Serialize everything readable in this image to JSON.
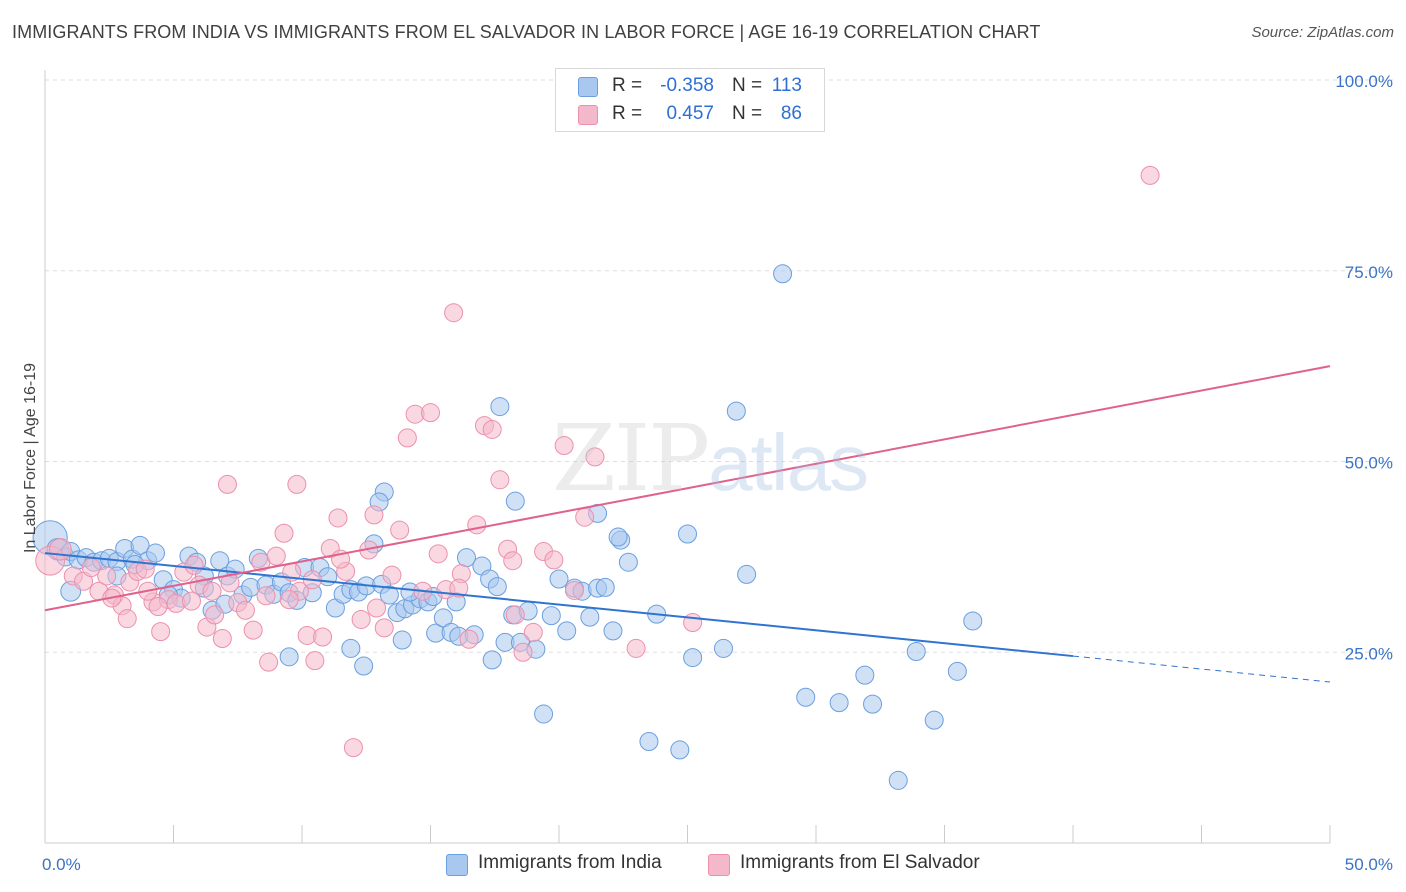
{
  "title": "IMMIGRANTS FROM INDIA VS IMMIGRANTS FROM EL SALVADOR IN LABOR FORCE | AGE 16-19 CORRELATION CHART",
  "source": "Source: ZipAtlas.com",
  "watermark": {
    "zip": "ZIP",
    "atlas": "atlas"
  },
  "legend": {
    "rows": [
      {
        "r_label": "R =",
        "r_value": "-0.358",
        "n_label": "N =",
        "n_value": "113"
      },
      {
        "r_label": "R =",
        "r_value": "0.457",
        "n_label": "N =",
        "n_value": "86"
      }
    ]
  },
  "bottom_legend": [
    {
      "label": "Immigrants from India"
    },
    {
      "label": "Immigrants from El Salvador"
    }
  ],
  "colors": {
    "india_fill": "#a9c8ef",
    "india_stroke": "#6a9fe0",
    "india_line": "#2f74d0",
    "salvador_fill": "#f4b8cb",
    "salvador_stroke": "#ec90ad",
    "salvador_line": "#e0628b",
    "tick_text": "#3a73c6",
    "grid": "#dddddd"
  },
  "chart_data": {
    "type": "scatter",
    "title": "IMMIGRANTS FROM INDIA VS IMMIGRANTS FROM EL SALVADOR IN LABOR FORCE | AGE 16-19 CORRELATION CHART",
    "xlabel": "",
    "ylabel": "In Labor Force | Age 16-19",
    "xlim": [
      0,
      50
    ],
    "ylim": [
      0,
      100
    ],
    "x_tick_labels": [
      "0.0%",
      "50.0%"
    ],
    "y_ticks": [
      25,
      50,
      75,
      100
    ],
    "y_tick_labels": [
      "25.0%",
      "50.0%",
      "75.0%",
      "100.0%"
    ],
    "grid": true,
    "legend_position": "top-center",
    "series": [
      {
        "name": "Immigrants from India",
        "R": -0.358,
        "N": 113,
        "trend": {
          "x0": 0,
          "y0": 38.0,
          "x1": 40,
          "y1": 24.5,
          "dashed_to_x": 50,
          "dashed_to_y": 21.1
        },
        "points": [
          [
            0.2,
            40.0,
            1.9
          ],
          [
            0.5,
            38.5,
            1.2
          ],
          [
            0.8,
            37.5,
            1
          ],
          [
            1.0,
            38.2,
            1
          ],
          [
            1.3,
            37.1,
            1
          ],
          [
            1.6,
            37.4,
            1
          ],
          [
            1.9,
            36.8,
            1
          ],
          [
            2.2,
            37.0,
            1
          ],
          [
            2.5,
            37.3,
            1
          ],
          [
            2.8,
            36.9,
            1
          ],
          [
            3.1,
            38.6,
            1
          ],
          [
            3.4,
            37.2,
            1
          ],
          [
            3.7,
            39.0,
            1
          ],
          [
            4.0,
            37.0,
            1
          ],
          [
            4.3,
            38.0,
            1
          ],
          [
            1.0,
            33.0,
            1.1
          ],
          [
            2.8,
            35.0,
            1
          ],
          [
            3.5,
            36.5,
            1
          ],
          [
            4.6,
            34.5,
            1
          ],
          [
            5.0,
            33.2,
            1
          ],
          [
            5.3,
            32.1,
            1
          ],
          [
            5.6,
            37.6,
            1
          ],
          [
            5.9,
            36.8,
            1
          ],
          [
            6.2,
            35.0,
            1
          ],
          [
            6.5,
            30.5,
            1
          ],
          [
            6.8,
            37.0,
            1
          ],
          [
            7.1,
            35.0,
            1
          ],
          [
            7.4,
            35.9,
            1
          ],
          [
            7.7,
            32.5,
            1
          ],
          [
            8.0,
            33.5,
            1
          ],
          [
            8.3,
            37.3,
            1
          ],
          [
            8.6,
            33.8,
            1
          ],
          [
            8.9,
            32.6,
            1
          ],
          [
            9.2,
            34.2,
            1
          ],
          [
            9.5,
            32.8,
            1
          ],
          [
            9.8,
            31.8,
            1
          ],
          [
            10.1,
            36.1,
            1
          ],
          [
            10.4,
            32.8,
            1
          ],
          [
            10.7,
            36.1,
            1
          ],
          [
            11.0,
            34.9,
            1
          ],
          [
            11.3,
            30.8,
            1
          ],
          [
            11.6,
            32.6,
            1
          ],
          [
            11.9,
            33.2,
            1
          ],
          [
            12.2,
            32.9,
            1
          ],
          [
            12.5,
            33.7,
            1
          ],
          [
            12.8,
            39.2,
            1
          ],
          [
            13.1,
            33.9,
            1
          ],
          [
            13.4,
            32.5,
            1
          ],
          [
            13.7,
            30.2,
            1
          ],
          [
            14.0,
            30.7,
            1
          ],
          [
            14.3,
            31.2,
            1
          ],
          [
            14.6,
            32.0,
            1
          ],
          [
            14.9,
            31.6,
            1
          ],
          [
            15.2,
            27.5,
            1
          ],
          [
            15.5,
            29.5,
            1
          ],
          [
            15.8,
            27.6,
            1
          ],
          [
            16.1,
            27.1,
            1
          ],
          [
            16.4,
            37.4,
            1
          ],
          [
            16.7,
            27.3,
            1
          ],
          [
            17.0,
            36.3,
            1
          ],
          [
            17.3,
            34.6,
            1
          ],
          [
            17.6,
            33.6,
            1
          ],
          [
            17.9,
            26.3,
            1
          ],
          [
            18.2,
            29.9,
            1
          ],
          [
            18.5,
            26.3,
            1
          ],
          [
            18.8,
            30.4,
            1
          ],
          [
            19.1,
            25.4,
            1
          ],
          [
            19.4,
            16.9,
            1
          ],
          [
            19.7,
            29.8,
            1
          ],
          [
            20.0,
            34.6,
            1
          ],
          [
            20.3,
            27.8,
            1
          ],
          [
            20.6,
            33.4,
            1
          ],
          [
            20.9,
            33.0,
            1
          ],
          [
            21.2,
            29.6,
            1
          ],
          [
            21.5,
            33.4,
            1
          ],
          [
            21.8,
            33.5,
            1
          ],
          [
            22.1,
            27.8,
            1
          ],
          [
            22.4,
            39.7,
            1
          ],
          [
            22.7,
            36.8,
            1
          ],
          [
            23.5,
            13.3,
            1
          ],
          [
            23.8,
            30.0,
            1
          ],
          [
            24.7,
            12.2,
            1
          ],
          [
            25.2,
            24.3,
            1
          ],
          [
            26.4,
            25.5,
            1
          ],
          [
            26.9,
            56.6,
            1
          ],
          [
            27.3,
            35.2,
            1
          ],
          [
            28.7,
            74.6,
            1
          ],
          [
            29.6,
            19.1,
            1
          ],
          [
            30.9,
            18.4,
            1
          ],
          [
            31.9,
            22.0,
            1
          ],
          [
            32.2,
            18.2,
            1
          ],
          [
            33.2,
            8.2,
            1
          ],
          [
            33.9,
            25.1,
            1
          ],
          [
            34.6,
            16.1,
            1
          ],
          [
            35.5,
            22.5,
            1
          ],
          [
            36.1,
            29.1,
            1
          ],
          [
            17.7,
            57.2,
            1
          ],
          [
            18.3,
            44.8,
            1
          ],
          [
            21.5,
            43.2,
            1
          ],
          [
            25.0,
            40.5,
            1
          ],
          [
            22.3,
            40.1,
            1
          ],
          [
            13.2,
            46.0,
            1
          ],
          [
            13.0,
            44.7,
            1
          ],
          [
            6.2,
            33.4,
            1
          ],
          [
            4.8,
            32.5,
            1
          ],
          [
            12.4,
            23.2,
            1
          ],
          [
            9.5,
            24.4,
            1
          ],
          [
            11.9,
            25.5,
            1
          ],
          [
            13.9,
            26.6,
            1
          ],
          [
            17.4,
            24.0,
            1
          ],
          [
            16.0,
            31.6,
            1
          ],
          [
            15.1,
            32.3,
            1
          ],
          [
            14.2,
            32.9,
            1
          ],
          [
            7.0,
            31.3,
            1
          ]
        ]
      },
      {
        "name": "Immigrants from El Salvador",
        "R": 0.457,
        "N": 86,
        "trend": {
          "x0": 0,
          "y0": 30.5,
          "x1": 50,
          "y1": 62.5
        },
        "points": [
          [
            0.2,
            37.0,
            1.6
          ],
          [
            0.6,
            38.5,
            1.2
          ],
          [
            1.1,
            35.0,
            1
          ],
          [
            1.5,
            34.3,
            1
          ],
          [
            1.8,
            36.1,
            1
          ],
          [
            2.1,
            33.0,
            1
          ],
          [
            2.4,
            35.0,
            1
          ],
          [
            2.7,
            32.5,
            1
          ],
          [
            3.0,
            31.1,
            1
          ],
          [
            3.3,
            34.2,
            1
          ],
          [
            3.6,
            35.6,
            1
          ],
          [
            3.9,
            35.9,
            1
          ],
          [
            4.2,
            31.6,
            1
          ],
          [
            4.5,
            27.7,
            1
          ],
          [
            4.8,
            31.9,
            1
          ],
          [
            5.1,
            31.4,
            1
          ],
          [
            5.4,
            35.5,
            1
          ],
          [
            5.7,
            31.7,
            1
          ],
          [
            6.0,
            33.8,
            1
          ],
          [
            6.3,
            28.3,
            1
          ],
          [
            6.6,
            29.9,
            1
          ],
          [
            6.9,
            26.8,
            1
          ],
          [
            7.2,
            34.1,
            1
          ],
          [
            7.5,
            31.5,
            1
          ],
          [
            7.8,
            30.5,
            1
          ],
          [
            8.1,
            27.9,
            1
          ],
          [
            8.4,
            36.8,
            1
          ],
          [
            8.7,
            23.7,
            1
          ],
          [
            9.0,
            37.6,
            1
          ],
          [
            9.3,
            40.6,
            1
          ],
          [
            9.6,
            35.5,
            1
          ],
          [
            9.9,
            33.0,
            1
          ],
          [
            10.2,
            27.2,
            1
          ],
          [
            10.5,
            23.9,
            1
          ],
          [
            10.8,
            27.0,
            1
          ],
          [
            11.1,
            38.6,
            1
          ],
          [
            11.4,
            42.6,
            1
          ],
          [
            11.7,
            35.6,
            1
          ],
          [
            12.0,
            12.5,
            1
          ],
          [
            12.3,
            29.3,
            1
          ],
          [
            12.6,
            38.4,
            1
          ],
          [
            12.9,
            30.8,
            1
          ],
          [
            13.2,
            28.2,
            1
          ],
          [
            13.5,
            35.1,
            1
          ],
          [
            13.8,
            41.0,
            1
          ],
          [
            14.1,
            53.1,
            1
          ],
          [
            14.4,
            56.2,
            1
          ],
          [
            14.7,
            33.0,
            1
          ],
          [
            15.0,
            56.4,
            1
          ],
          [
            15.3,
            37.9,
            1
          ],
          [
            15.6,
            33.2,
            1
          ],
          [
            15.9,
            69.5,
            1
          ],
          [
            16.2,
            35.3,
            1
          ],
          [
            16.5,
            26.7,
            1
          ],
          [
            16.8,
            41.7,
            1
          ],
          [
            17.1,
            54.7,
            1
          ],
          [
            17.4,
            54.2,
            1
          ],
          [
            17.7,
            47.6,
            1
          ],
          [
            18.0,
            38.5,
            1
          ],
          [
            18.3,
            29.9,
            1
          ],
          [
            18.6,
            25.0,
            1
          ],
          [
            19.0,
            27.6,
            1
          ],
          [
            19.4,
            38.2,
            1
          ],
          [
            19.8,
            37.1,
            1
          ],
          [
            20.2,
            52.1,
            1
          ],
          [
            20.6,
            33.1,
            1
          ],
          [
            21.0,
            42.7,
            1
          ],
          [
            21.4,
            50.6,
            1
          ],
          [
            23.0,
            25.5,
            1
          ],
          [
            25.2,
            28.9,
            1
          ],
          [
            43.0,
            87.5,
            1
          ],
          [
            4.0,
            33.0,
            1
          ],
          [
            3.2,
            29.4,
            1
          ],
          [
            4.4,
            31.0,
            1
          ],
          [
            7.1,
            47.0,
            1
          ],
          [
            9.8,
            47.0,
            1
          ],
          [
            12.8,
            43.0,
            1
          ],
          [
            11.5,
            37.2,
            1
          ],
          [
            10.4,
            34.5,
            1
          ],
          [
            16.1,
            33.4,
            1
          ],
          [
            18.2,
            37.0,
            1
          ],
          [
            8.6,
            32.4,
            1
          ],
          [
            9.5,
            31.9,
            1
          ],
          [
            6.5,
            33.0,
            1
          ],
          [
            5.8,
            36.4,
            1
          ],
          [
            2.6,
            32.1,
            1
          ]
        ]
      }
    ]
  }
}
